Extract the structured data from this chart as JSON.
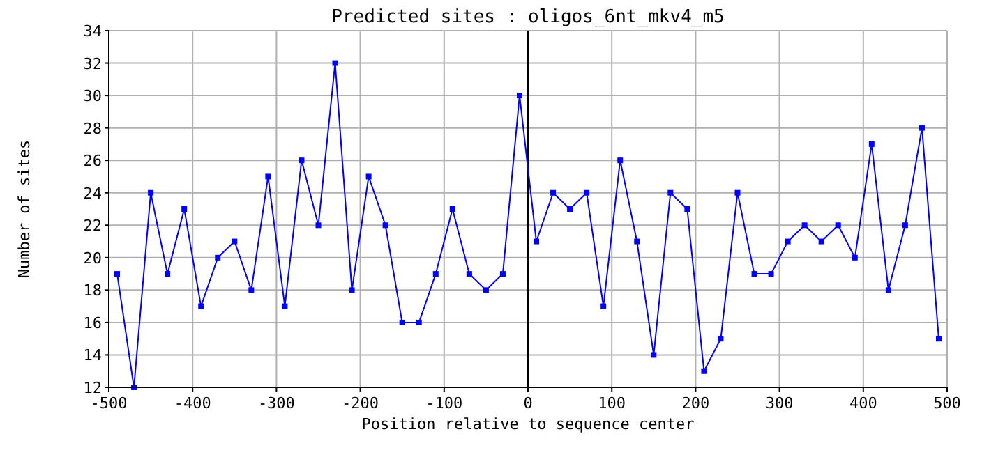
{
  "chart_data": {
    "type": "line",
    "title": "Predicted sites : oligos_6nt_mkv4_m5",
    "xlabel": "Position relative to sequence center",
    "ylabel": "Number of sites",
    "x": [
      -490,
      -470,
      -450,
      -430,
      -410,
      -390,
      -370,
      -350,
      -330,
      -310,
      -290,
      -270,
      -250,
      -230,
      -210,
      -190,
      -170,
      -150,
      -130,
      -110,
      -90,
      -70,
      -50,
      -30,
      -10,
      10,
      30,
      50,
      70,
      90,
      110,
      130,
      150,
      170,
      190,
      210,
      230,
      250,
      270,
      290,
      310,
      330,
      350,
      370,
      390,
      410,
      430,
      450,
      470,
      490
    ],
    "series": [
      {
        "color": "#0000ff",
        "values": [
          19,
          12,
          24,
          19,
          23,
          17,
          20,
          21,
          18,
          25,
          17,
          26,
          22,
          32,
          18,
          25,
          22,
          16,
          16,
          19,
          23,
          19,
          18,
          19,
          30,
          21,
          24,
          23,
          24,
          17,
          26,
          21,
          14,
          24,
          23,
          13,
          15,
          24,
          19,
          19,
          21,
          22,
          21,
          22,
          20,
          27,
          18,
          22,
          28,
          15
        ]
      }
    ],
    "xlim": [
      -500,
      500
    ],
    "xticks": [
      -500,
      -400,
      -300,
      -200,
      -100,
      0,
      100,
      200,
      300,
      400,
      500
    ],
    "ylim": [
      12,
      34
    ],
    "yticks": [
      12,
      14,
      16,
      18,
      20,
      22,
      24,
      26,
      28,
      30,
      32,
      34
    ],
    "grid": true,
    "marker": "square",
    "line_style": "solid",
    "ref_lines": [
      {
        "axis": "x",
        "value": 0,
        "color": "#000000"
      }
    ]
  }
}
